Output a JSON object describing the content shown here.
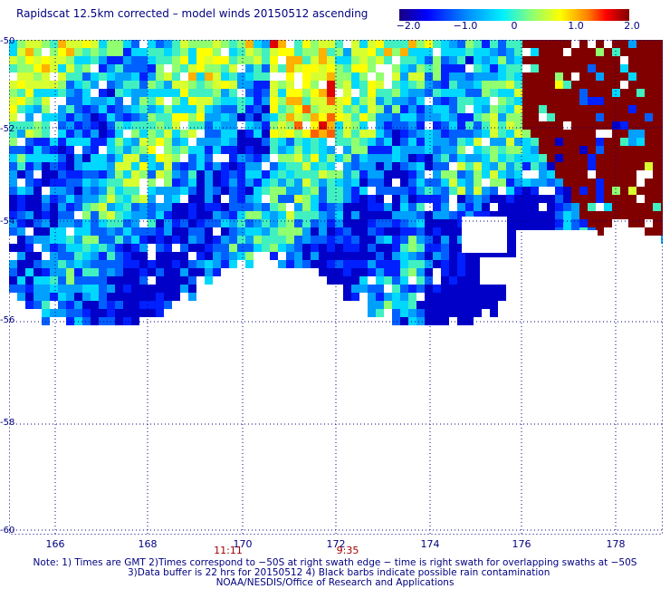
{
  "title": "Rapidscat 12.5km corrected – model winds 20150512 ascending",
  "colorbar": {
    "ticks": [
      "−2.0",
      "−1.0",
      "0",
      "1.0",
      "2.0"
    ],
    "tick_values": [
      -2.0,
      -1.0,
      0,
      1.0,
      2.0
    ],
    "colors": [
      "#1a0080",
      "#0000ff",
      "#0080ff",
      "#00e0ff",
      "#80ff80",
      "#ffff00",
      "#ff8000",
      "#ff0000",
      "#800000"
    ]
  },
  "axes": {
    "lat_labels": [
      "-50",
      "-52",
      "-54",
      "-56",
      "-58",
      "-60"
    ],
    "lon_labels": [
      "166",
      "168",
      "170",
      "172",
      "174",
      "176",
      "178"
    ],
    "lon_values": [
      166,
      168,
      170,
      172,
      174,
      176,
      178
    ],
    "lat_values": [
      -50,
      -52,
      -54,
      -56,
      -58,
      -60
    ]
  },
  "times": [
    "11:11",
    "9:35"
  ],
  "notes": {
    "line1": "Note: 1) Times are GMT 2)Times correspond to −50S at right swath edge − time is right swath for overlapping swaths at −50S",
    "line2": "3)Data buffer is 22 hrs for 20150512 4) Black barbs indicate possible rain contamination",
    "line3": "NOAA/NESDIS/Office of Research and Applications"
  }
}
